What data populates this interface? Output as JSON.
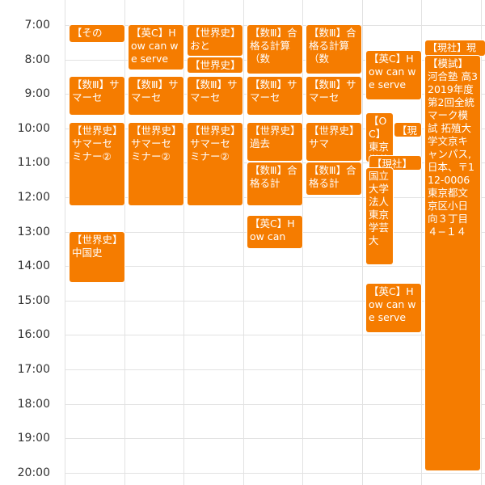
{
  "hours": [
    "7:00",
    "8:00",
    "9:00",
    "10:00",
    "11:00",
    "12:00",
    "13:00",
    "14:00",
    "15:00",
    "16:00",
    "17:00",
    "18:00",
    "19:00",
    "20:00"
  ],
  "events": [
    {
      "id": "e1",
      "col": 0,
      "text": "【その"
    },
    {
      "id": "e2",
      "col": 0,
      "text": "【数Ⅲ】サマーセ"
    },
    {
      "id": "e3",
      "col": 0,
      "text": "【世界史】サマーセミナー②"
    },
    {
      "id": "e4",
      "col": 0,
      "text": "【世界史】中国史"
    },
    {
      "id": "e5",
      "col": 1,
      "text": "【英C】How can we serve"
    },
    {
      "id": "e6",
      "col": 1,
      "text": "【数Ⅲ】サマーセ"
    },
    {
      "id": "e7",
      "col": 1,
      "text": "【世界史】サマーセミナー②"
    },
    {
      "id": "e8",
      "col": 2,
      "text": "【世界史】おと"
    },
    {
      "id": "e9",
      "col": 2,
      "text": "【世界史】"
    },
    {
      "id": "e10",
      "col": 2,
      "text": "【数Ⅲ】サマーセ"
    },
    {
      "id": "e11",
      "col": 2,
      "text": "【世界史】サマーセミナー②"
    },
    {
      "id": "e12",
      "col": 3,
      "text": "【数Ⅲ】合格る計算（数"
    },
    {
      "id": "e13",
      "col": 3,
      "text": "【数Ⅲ】サマーセ"
    },
    {
      "id": "e14",
      "col": 3,
      "text": "【世界史】過去"
    },
    {
      "id": "e15",
      "col": 3,
      "text": "【数Ⅲ】合格る計"
    },
    {
      "id": "e16",
      "col": 3,
      "text": "【英C】How can"
    },
    {
      "id": "e17",
      "col": 4,
      "text": "【数Ⅲ】合格る計算（数"
    },
    {
      "id": "e18",
      "col": 4,
      "text": "【数Ⅲ】サマーセ"
    },
    {
      "id": "e19",
      "col": 4,
      "text": "【世界史】サマ"
    },
    {
      "id": "e20",
      "col": 4,
      "text": "【数Ⅲ】合格る計"
    },
    {
      "id": "e21",
      "col": 5,
      "text": "【英C】How can we serve"
    },
    {
      "id": "e22",
      "col": 5,
      "text": "【OC】東京学芸"
    },
    {
      "id": "e23",
      "col": 5,
      "text": "【現"
    },
    {
      "id": "e24",
      "col": 5,
      "text": "【現社】"
    },
    {
      "id": "e25",
      "col": 5,
      "text": "国立大学法人東京学芸大"
    },
    {
      "id": "e26",
      "col": 5,
      "text": "【英C】How can we serve"
    },
    {
      "id": "e27",
      "col": 6,
      "text": "【現社】現"
    },
    {
      "id": "e28",
      "col": 6,
      "text": "【模試】河合塾 高3 2019年度第2回全統マーク模試 拓殖大学文京キャンパス, 日本、〒112-0006 東京都文京区小日向３丁目４−１４"
    }
  ]
}
